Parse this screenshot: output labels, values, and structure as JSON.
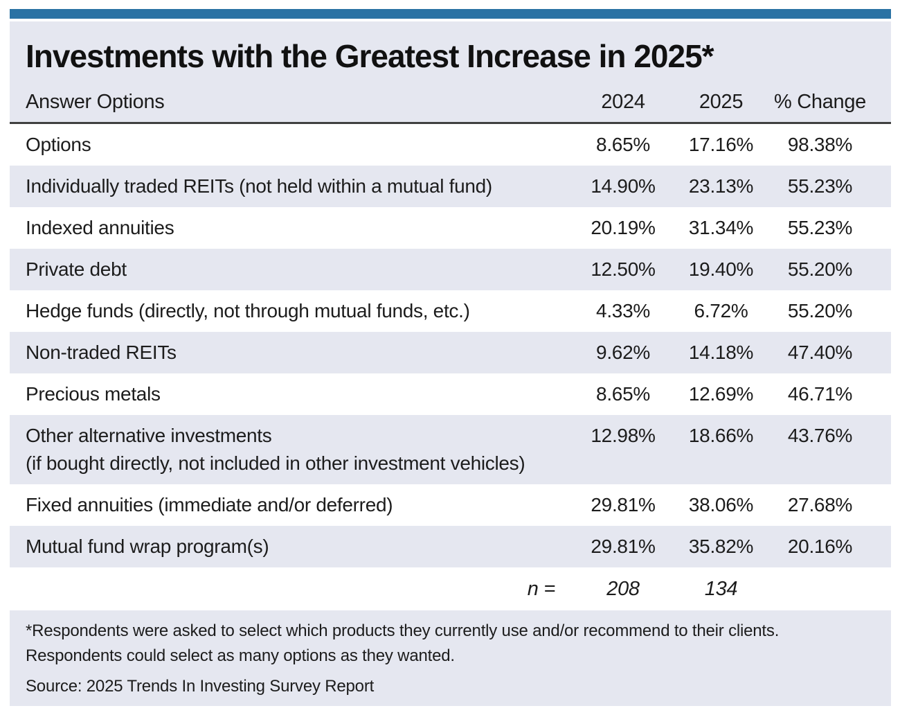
{
  "colors": {
    "accent_bar": "#2a72a4",
    "panel_bg": "#e5e7f0",
    "row_white": "#ffffff",
    "row_shaded": "#e5e7f0",
    "header_rule": "#404040",
    "text": "#1c1c1c"
  },
  "chart_data": {
    "type": "table",
    "title": "Investments with the Greatest Increase in 2025*",
    "columns": [
      "Answer Options",
      "2024",
      "2025",
      "% Change"
    ],
    "rows": [
      {
        "label": "Options",
        "y2024": "8.65%",
        "y2025": "17.16%",
        "change": "98.38%"
      },
      {
        "label": "Individually traded REITs (not held within a mutual fund)",
        "y2024": "14.90%",
        "y2025": "23.13%",
        "change": "55.23%"
      },
      {
        "label": "Indexed annuities",
        "y2024": "20.19%",
        "y2025": "31.34%",
        "change": "55.23%"
      },
      {
        "label": "Private debt",
        "y2024": "12.50%",
        "y2025": "19.40%",
        "change": "55.20%"
      },
      {
        "label": "Hedge funds (directly, not through mutual funds, etc.)",
        "y2024": "4.33%",
        "y2025": "6.72%",
        "change": "55.20%"
      },
      {
        "label": "Non-traded REITs",
        "y2024": "9.62%",
        "y2025": "14.18%",
        "change": "47.40%"
      },
      {
        "label": "Precious metals",
        "y2024": "8.65%",
        "y2025": "12.69%",
        "change": "46.71%"
      },
      {
        "label": "Other alternative investments\n(if bought directly, not included in other investment vehicles)",
        "y2024": "12.98%",
        "y2025": "18.66%",
        "change": "43.76%"
      },
      {
        "label": "Fixed annuities (immediate and/or deferred)",
        "y2024": "29.81%",
        "y2025": "38.06%",
        "change": "27.68%"
      },
      {
        "label": "Mutual fund wrap program(s)",
        "y2024": "29.81%",
        "y2025": "35.82%",
        "change": "20.16%"
      }
    ],
    "n_row": {
      "label": "n =",
      "y2024": "208",
      "y2025": "134"
    },
    "footnote_line1": "*Respondents were asked to select which products they currently use and/or recommend to their clients.",
    "footnote_line2": "Respondents could select as many options as they wanted.",
    "source": "Source: 2025 Trends In Investing Survey Report"
  }
}
